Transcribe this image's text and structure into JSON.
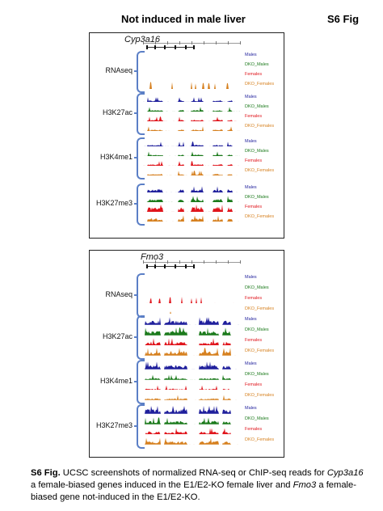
{
  "title": "Not induced in male liver",
  "fig_label": "S6 Fig",
  "colors": {
    "Males": "#1f1f9c",
    "DKO_Males": "#1b7a1b",
    "Females": "#e0151c",
    "DKO_Females": "#d6801f",
    "brace": "#5b7fc6"
  },
  "panels": [
    {
      "gene": "Cyp3a16",
      "groups": [
        {
          "label": "RNAseq",
          "tracks": [
            "Males",
            "DKO_Males",
            "Females",
            "DKO_Females"
          ]
        },
        {
          "label": "H3K27ac",
          "tracks": [
            "Males",
            "DKO_Males",
            "Females",
            "DKO_Females"
          ]
        },
        {
          "label": "H3K4me1",
          "tracks": [
            "Males",
            "DKO_Males",
            "Females",
            "DKO_Females"
          ]
        },
        {
          "label": "H3K27me3",
          "tracks": [
            "Males",
            "DKO_Males",
            "Females",
            "DKO_Females"
          ]
        }
      ]
    },
    {
      "gene": "Fmo3",
      "groups": [
        {
          "label": "RNAseq",
          "tracks": [
            "Males",
            "DKO_Males",
            "Females",
            "DKO_Females"
          ]
        },
        {
          "label": "H3K27ac",
          "tracks": [
            "Males",
            "DKO_Males",
            "Females",
            "DKO_Females"
          ]
        },
        {
          "label": "H3K4me1",
          "tracks": [
            "Males",
            "DKO_Males",
            "Females",
            "DKO_Females"
          ]
        },
        {
          "label": "H3K27me3",
          "tracks": [
            "Males",
            "DKO_Males",
            "Females",
            "DKO_Females"
          ]
        }
      ]
    }
  ],
  "caption": {
    "lead": "S6 Fig.",
    "text1": " UCSC screenshots of normalized RNA-seq or ChIP-seq reads for ",
    "gene1": "Cyp3a16",
    "text2": " a female-biased genes induced in the E1/E2-KO female liver and ",
    "gene2": "Fmo3",
    "text3": " a female-biased gene not-induced in the E1/E2-KO."
  }
}
